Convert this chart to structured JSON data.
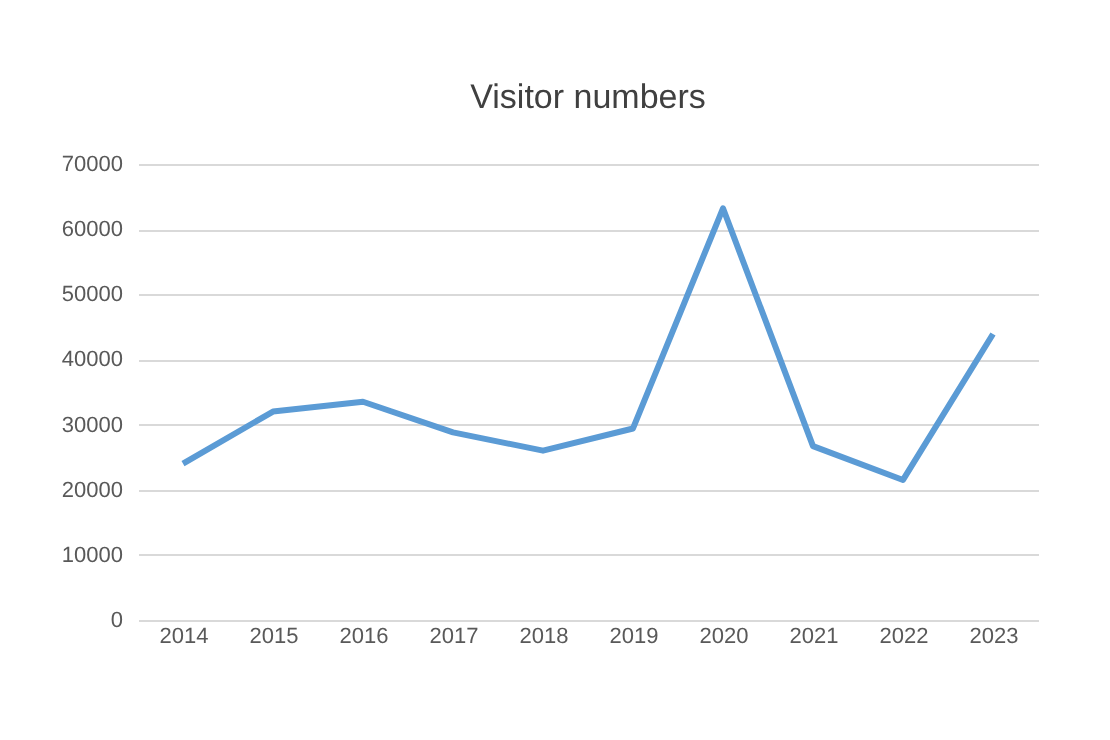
{
  "chart_data": {
    "type": "line",
    "title": "Visitor numbers",
    "categories": [
      "2014",
      "2015",
      "2016",
      "2017",
      "2018",
      "2019",
      "2020",
      "2021",
      "2022",
      "2023"
    ],
    "series": [
      {
        "color": "#5b9bd5",
        "values": [
          24000,
          32000,
          33500,
          28800,
          26000,
          29400,
          63200,
          26700,
          21500,
          43900
        ]
      }
    ],
    "ylim": [
      0,
      70000
    ],
    "yticks": [
      0,
      10000,
      20000,
      30000,
      40000,
      50000,
      60000,
      70000
    ],
    "grid": "y",
    "marker": "none",
    "line_style": "solid"
  }
}
